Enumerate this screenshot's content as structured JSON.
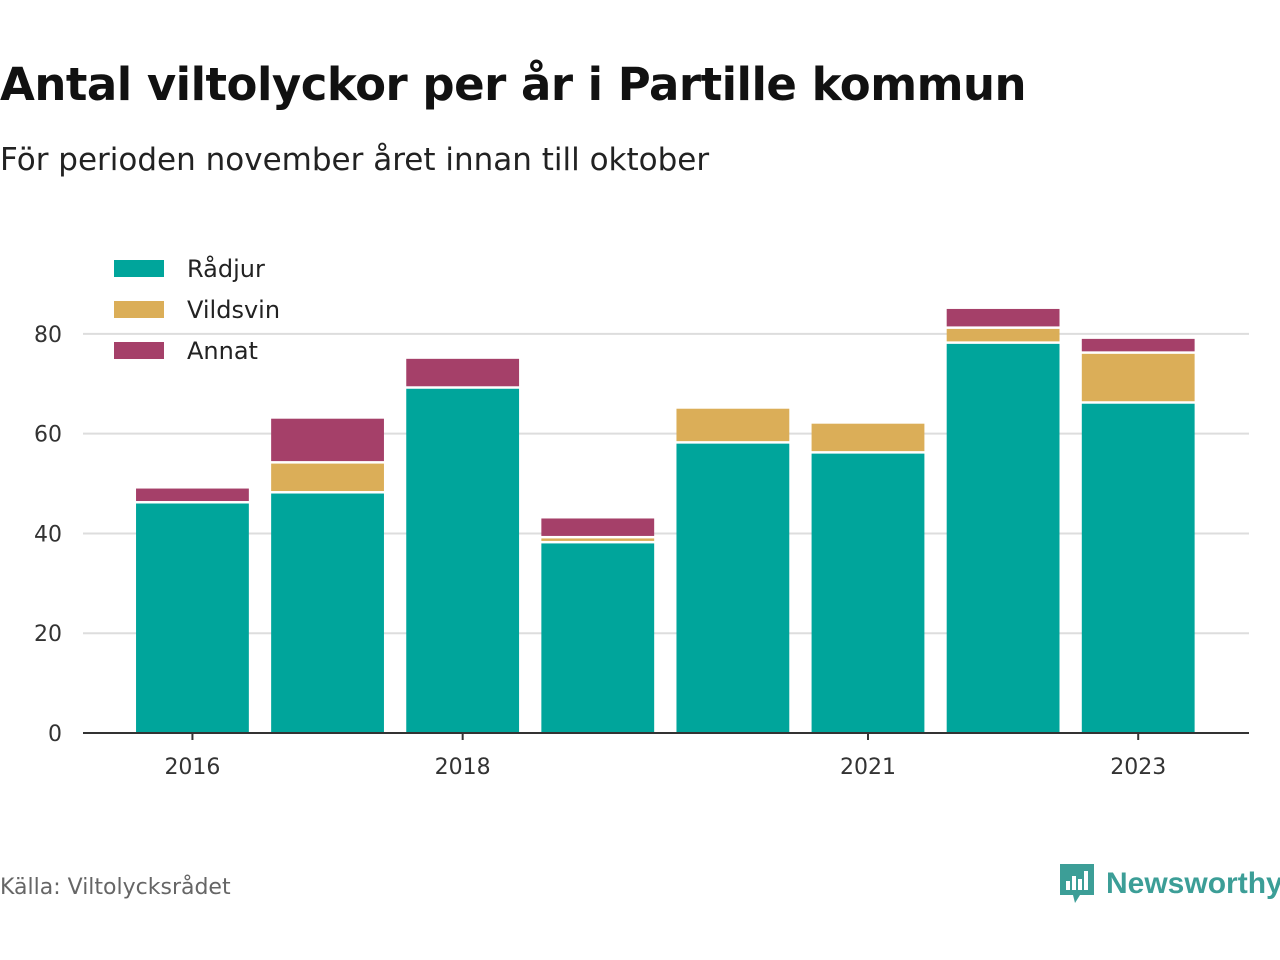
{
  "title": "Antal viltolyckor per år i Partille kommun",
  "subtitle": "För perioden november året innan till oktober",
  "source": "Källa: Viltolycksrådet",
  "brand": "Newsworthy",
  "colors": {
    "radjur": "#00a59b",
    "vildsvin": "#dbae58",
    "annat": "#a54069",
    "grid": "#dddddd",
    "axis": "#333333",
    "brand": "#3c9e97"
  },
  "chart_data": {
    "type": "bar",
    "stacked": true,
    "categories": [
      "2016",
      "2017",
      "2018",
      "2019",
      "2020",
      "2021",
      "2022",
      "2023"
    ],
    "x_tick_labels": [
      "2016",
      "",
      "2018",
      "",
      "",
      "2021",
      "",
      "2023"
    ],
    "series": [
      {
        "name": "Rådjur",
        "color": "#00a59b",
        "values": [
          46,
          48,
          69,
          38,
          58,
          56,
          78,
          66
        ]
      },
      {
        "name": "Vildsvin",
        "color": "#dbae58",
        "values": [
          0,
          6,
          0,
          1,
          7,
          6,
          3,
          10
        ]
      },
      {
        "name": "Annat",
        "color": "#a54069",
        "values": [
          3,
          9,
          6,
          4,
          0,
          0,
          4,
          3
        ]
      }
    ],
    "ylim": [
      0,
      90
    ],
    "yticks": [
      0,
      20,
      40,
      60,
      80
    ],
    "grid": true,
    "legend_position": "top-left"
  }
}
